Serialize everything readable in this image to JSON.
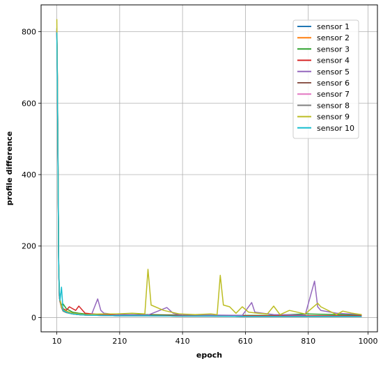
{
  "chart_data": {
    "type": "line",
    "title": "",
    "xlabel": "epoch",
    "ylabel": "profile difference",
    "xlim": [
      -40,
      1030
    ],
    "ylim": [
      -40,
      875
    ],
    "xticks": [
      10,
      210,
      410,
      610,
      810,
      1000
    ],
    "yticks": [
      0,
      200,
      400,
      600,
      800
    ],
    "grid": true,
    "legend": "top-right",
    "series": [
      {
        "name": "sensor 1",
        "color": "#1f77b4",
        "x": [
          10,
          12,
          14,
          16,
          18,
          20,
          25,
          30,
          40,
          50,
          60,
          80,
          100,
          150,
          200,
          300,
          400,
          500,
          600,
          700,
          800,
          900,
          980
        ],
        "y": [
          800,
          650,
          400,
          150,
          60,
          45,
          30,
          20,
          15,
          12,
          10,
          8,
          7,
          6,
          5,
          5,
          4,
          4,
          3,
          3,
          3,
          3,
          3
        ]
      },
      {
        "name": "sensor 2",
        "color": "#ff7f0e",
        "x": [
          10,
          12,
          14,
          16,
          18,
          20,
          25,
          30,
          40,
          50,
          60,
          80,
          100,
          150,
          200,
          300,
          400,
          500,
          600,
          700,
          800,
          900,
          980
        ],
        "y": [
          805,
          640,
          390,
          140,
          60,
          45,
          28,
          18,
          14,
          12,
          10,
          8,
          7,
          6,
          5,
          5,
          4,
          4,
          3,
          3,
          3,
          3,
          3
        ]
      },
      {
        "name": "sensor 3",
        "color": "#2ca02c",
        "x": [
          10,
          12,
          14,
          16,
          18,
          20,
          25,
          30,
          40,
          50,
          60,
          80,
          100,
          150,
          200,
          300,
          400,
          500,
          600,
          700,
          800,
          900,
          980
        ],
        "y": [
          810,
          660,
          410,
          150,
          70,
          50,
          35,
          38,
          25,
          20,
          15,
          12,
          10,
          9,
          8,
          8,
          7,
          6,
          6,
          6,
          10,
          8,
          7
        ]
      },
      {
        "name": "sensor 4",
        "color": "#d62728",
        "x": [
          10,
          12,
          14,
          16,
          18,
          20,
          25,
          30,
          40,
          50,
          60,
          70,
          80,
          100,
          150,
          200,
          300,
          400,
          500,
          600,
          700,
          800,
          900,
          980
        ],
        "y": [
          800,
          630,
          380,
          140,
          60,
          45,
          30,
          25,
          20,
          30,
          25,
          20,
          32,
          12,
          8,
          7,
          6,
          6,
          5,
          5,
          5,
          5,
          5,
          5
        ]
      },
      {
        "name": "sensor 5",
        "color": "#9467bd",
        "x": [
          10,
          12,
          14,
          16,
          18,
          20,
          25,
          30,
          40,
          50,
          60,
          80,
          100,
          120,
          140,
          150,
          160,
          200,
          300,
          360,
          380,
          400,
          500,
          600,
          630,
          640,
          700,
          800,
          830,
          840,
          850,
          900,
          980
        ],
        "y": [
          808,
          640,
          400,
          150,
          70,
          50,
          30,
          20,
          18,
          15,
          12,
          10,
          8,
          7,
          52,
          20,
          12,
          8,
          7,
          28,
          12,
          8,
          7,
          6,
          42,
          15,
          8,
          7,
          102,
          30,
          20,
          12,
          8
        ]
      },
      {
        "name": "sensor 6",
        "color": "#8c564b",
        "x": [
          10,
          12,
          14,
          16,
          18,
          20,
          25,
          30,
          40,
          50,
          60,
          80,
          100,
          150,
          200,
          300,
          400,
          500,
          600,
          700,
          800,
          900,
          980
        ],
        "y": [
          800,
          640,
          380,
          140,
          60,
          45,
          28,
          18,
          14,
          12,
          10,
          8,
          7,
          6,
          5,
          5,
          4,
          4,
          3,
          3,
          3,
          3,
          3
        ]
      },
      {
        "name": "sensor 7",
        "color": "#e377c2",
        "x": [
          10,
          12,
          14,
          16,
          18,
          20,
          25,
          30,
          40,
          50,
          60,
          80,
          100,
          150,
          200,
          300,
          400,
          500,
          600,
          700,
          800,
          900,
          980
        ],
        "y": [
          802,
          645,
          395,
          145,
          60,
          45,
          30,
          20,
          15,
          12,
          10,
          8,
          7,
          6,
          5,
          5,
          4,
          4,
          3,
          3,
          3,
          3,
          3
        ]
      },
      {
        "name": "sensor 8",
        "color": "#7f7f7f",
        "x": [
          10,
          12,
          14,
          16,
          18,
          20,
          25,
          30,
          40,
          50,
          60,
          80,
          100,
          150,
          200,
          300,
          400,
          500,
          600,
          700,
          800,
          900,
          980
        ],
        "y": [
          800,
          640,
          390,
          140,
          60,
          45,
          28,
          18,
          14,
          12,
          10,
          8,
          7,
          6,
          5,
          5,
          4,
          4,
          3,
          3,
          3,
          3,
          3
        ]
      },
      {
        "name": "sensor 9",
        "color": "#bcbd22",
        "x": [
          10,
          12,
          14,
          16,
          18,
          20,
          25,
          30,
          40,
          50,
          60,
          80,
          100,
          150,
          200,
          250,
          290,
          300,
          310,
          350,
          400,
          450,
          500,
          520,
          530,
          540,
          560,
          580,
          600,
          620,
          650,
          680,
          700,
          720,
          750,
          800,
          840,
          850,
          900,
          920,
          950,
          980
        ],
        "y": [
          835,
          650,
          410,
          150,
          70,
          50,
          30,
          22,
          18,
          15,
          12,
          10,
          8,
          10,
          10,
          12,
          10,
          135,
          35,
          20,
          10,
          8,
          10,
          8,
          118,
          35,
          30,
          12,
          30,
          15,
          12,
          10,
          32,
          8,
          20,
          10,
          40,
          30,
          8,
          18,
          12,
          8
        ]
      },
      {
        "name": "sensor 10",
        "color": "#17becf",
        "x": [
          10,
          12,
          14,
          16,
          18,
          20,
          25,
          30,
          40,
          50,
          60,
          80,
          100,
          150,
          200,
          300,
          400,
          500,
          600,
          700,
          800,
          900,
          980
        ],
        "y": [
          798,
          630,
          390,
          140,
          70,
          48,
          85,
          20,
          15,
          12,
          10,
          8,
          7,
          6,
          5,
          5,
          4,
          4,
          3,
          3,
          3,
          3,
          3
        ]
      }
    ]
  }
}
